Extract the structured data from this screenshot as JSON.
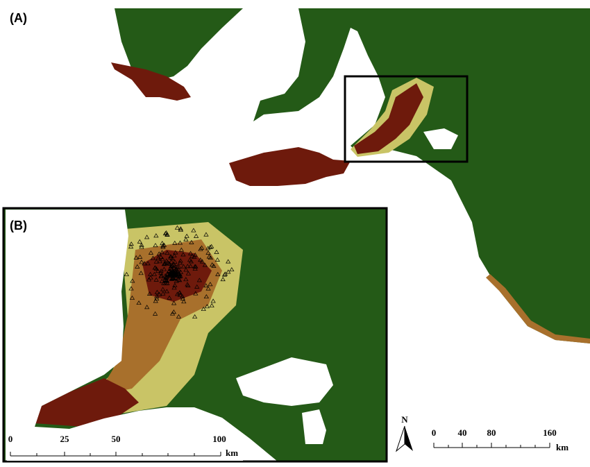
{
  "panels": {
    "a": {
      "label": "(A)"
    },
    "b": {
      "label": "(B)"
    }
  },
  "scale_bar_b": {
    "ticks": [
      0,
      25,
      50,
      100
    ],
    "unit": "km"
  },
  "scale_bar_a": {
    "ticks": [
      0,
      40,
      80,
      160
    ],
    "unit": "km"
  },
  "north_arrow": {
    "label": "N"
  }
}
